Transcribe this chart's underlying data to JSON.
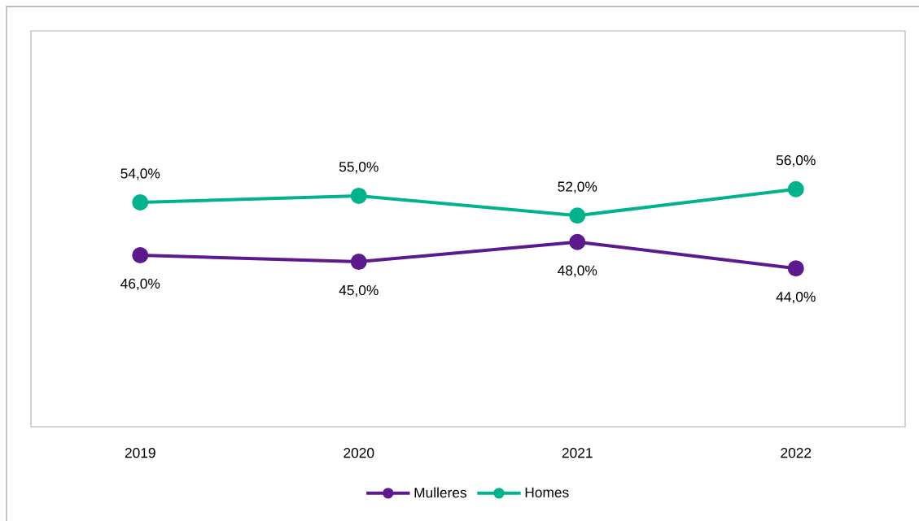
{
  "chart_data": {
    "type": "line",
    "categories": [
      "2019",
      "2020",
      "2021",
      "2022"
    ],
    "series": [
      {
        "name": "Mulleres",
        "color": "#5c1a8e",
        "values": [
          46,
          45,
          48,
          44
        ],
        "value_labels": [
          "46,0%",
          "45,0%",
          "48,0%",
          "44,0%"
        ]
      },
      {
        "name": "Homes",
        "color": "#00b38c",
        "values": [
          54,
          55,
          52,
          56
        ],
        "value_labels": [
          "54,0%",
          "55,0%",
          "52,0%",
          "56,0%"
        ]
      }
    ],
    "legend": "bottom",
    "marker": "circle",
    "line_style": "solid",
    "grid": false
  }
}
